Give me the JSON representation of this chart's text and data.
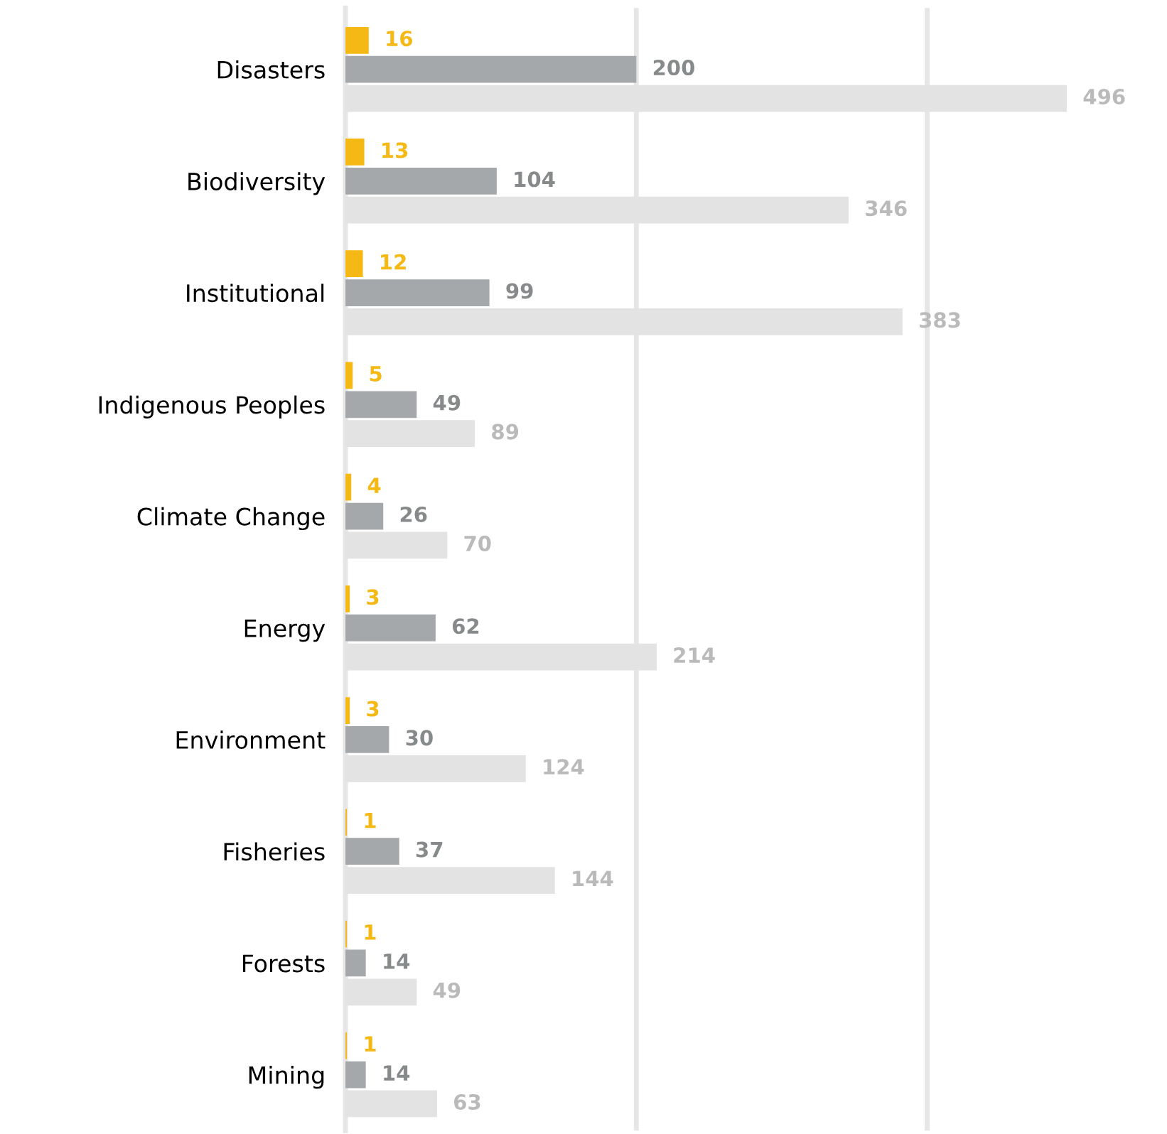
{
  "chart_data": {
    "type": "bar",
    "orientation": "horizontal",
    "categories": [
      "Disasters",
      "Biodiversity",
      "Institutional",
      "Indigenous Peoples",
      "Climate Change",
      "Energy",
      "Environment",
      "Fisheries",
      "Forests",
      "Mining"
    ],
    "series": [
      {
        "color": "#f5b915",
        "values": [
          16,
          13,
          12,
          5,
          4,
          3,
          3,
          1,
          1,
          1
        ]
      },
      {
        "color": "#a5a8aa",
        "values": [
          200,
          104,
          99,
          49,
          26,
          62,
          30,
          37,
          14,
          14
        ]
      },
      {
        "color": "#e3e3e3",
        "values": [
          496,
          346,
          383,
          89,
          70,
          214,
          124,
          144,
          49,
          63
        ]
      }
    ],
    "ref_lines": [
      {
        "axis": "x",
        "value": 200,
        "color": "#e6e6e6"
      },
      {
        "axis": "x",
        "value": 400,
        "color": "#e6e6e6"
      }
    ],
    "tick_labels": "y",
    "data_labels": true
  }
}
